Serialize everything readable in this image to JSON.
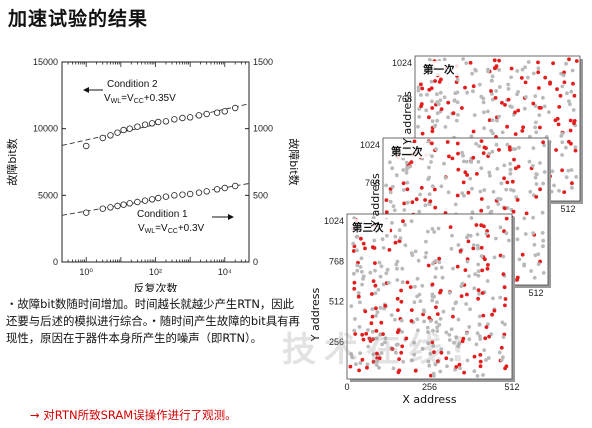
{
  "page": {
    "title": "加速试验的结果",
    "bullets": "・故障bit数随时间增加。时间越长就越少产生RTN，因此还要与后述的模拟进行综合。・随时间产生故障的bit具有再现性，原因在于器件本身所产生的噪声（即RTN）。",
    "conclusion": "→ 对RTN所致SRAM误操作进行了观测。",
    "watermark": "技术在线!"
  },
  "chart_data": [
    {
      "type": "scatter",
      "xlabel": "反复次数",
      "ylabel": "故障bit数",
      "ylabel_right": "故障bit数",
      "xscale": "log",
      "xlim": [
        0.2,
        50000
      ],
      "ylim": [
        0,
        15000
      ],
      "ylim_right": [
        0,
        1500
      ],
      "x_ticks": [
        "10⁰",
        "10²",
        "10⁴"
      ],
      "y_ticks": [
        "0",
        "5000",
        "10000",
        "15000"
      ],
      "y_ticks_right": [
        "0",
        "500",
        "1000",
        "1500"
      ],
      "series": [
        {
          "name": "Condition 2",
          "legend_main": "Condition 2",
          "legend_formula": "V",
          "legend_sub1": "WL",
          "legend_eq": "=V",
          "legend_sub2": "CC",
          "legend_tail": "+0.35V",
          "axis": "left",
          "x": [
            1,
            3,
            5,
            8,
            12,
            18,
            30,
            50,
            80,
            120,
            200,
            350,
            600,
            1000,
            1800,
            3000,
            6000,
            10000,
            20000
          ],
          "y": [
            8700,
            9300,
            9500,
            9700,
            9900,
            10000,
            10150,
            10300,
            10400,
            10500,
            10550,
            10700,
            10800,
            10850,
            11000,
            11100,
            11200,
            11300,
            11550
          ]
        },
        {
          "name": "Condition 1",
          "legend_main": "Condition 1",
          "legend_formula": "V",
          "legend_sub1": "WL",
          "legend_eq": "=V",
          "legend_sub2": "CC",
          "legend_tail": "+0.3V",
          "axis": "right",
          "x": [
            1,
            3,
            5,
            8,
            12,
            18,
            30,
            50,
            80,
            120,
            200,
            350,
            600,
            1000,
            1800,
            3000,
            6000,
            10000,
            20000
          ],
          "y": [
            370,
            400,
            410,
            420,
            430,
            440,
            450,
            460,
            470,
            480,
            490,
            500,
            505,
            510,
            520,
            530,
            545,
            555,
            570
          ]
        }
      ]
    },
    {
      "type": "scatter",
      "panels": [
        {
          "label": "第一次"
        },
        {
          "label": "第二次"
        },
        {
          "label": "第三次"
        }
      ],
      "xlabel": "X address",
      "ylabel": "Y address",
      "xlim": [
        0,
        512
      ],
      "ylim": [
        0,
        1024
      ],
      "x_ticks": [
        "0",
        "256",
        "512"
      ],
      "y_ticks": [
        "256",
        "512",
        "768",
        "1024"
      ],
      "back_x_tick": "512",
      "back_y_ticks": [
        "768",
        "1024"
      ],
      "colors": {
        "fail": "#e41c1c",
        "other": "#b9b9b9"
      }
    }
  ]
}
